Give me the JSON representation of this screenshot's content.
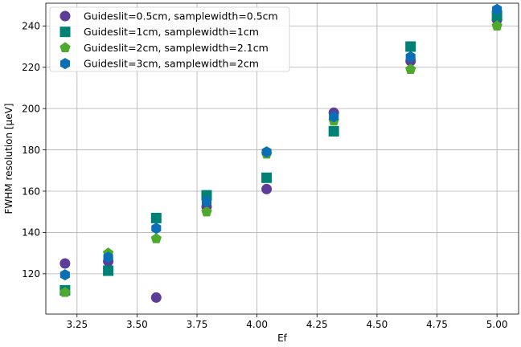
{
  "chart_data": {
    "type": "scatter",
    "xlabel": "Ef",
    "ylabel": "FWHM resolution [μeV]",
    "xlim": [
      3.12,
      5.09
    ],
    "ylim": [
      100.5,
      251
    ],
    "xticks": [
      3.25,
      3.5,
      3.75,
      4.0,
      4.25,
      4.5,
      4.75,
      5.0
    ],
    "xtick_labels": [
      "3.25",
      "3.50",
      "3.75",
      "4.00",
      "4.25",
      "4.50",
      "4.75",
      "5.00"
    ],
    "yticks": [
      120,
      140,
      160,
      180,
      200,
      220,
      240
    ],
    "ytick_labels": [
      "120",
      "140",
      "160",
      "180",
      "200",
      "220",
      "240"
    ],
    "grid": true,
    "legend_position": "top-left",
    "series": [
      {
        "name": "Guideslit=0.5cm, samplewidth=0.5cm",
        "color": "#5e3c99",
        "marker": "circle",
        "points": [
          [
            3.2,
            125
          ],
          [
            3.38,
            126
          ],
          [
            3.58,
            108.5
          ],
          [
            3.79,
            152.5
          ],
          [
            4.04,
            161
          ],
          [
            4.32,
            198
          ],
          [
            4.64,
            223
          ],
          [
            5.0,
            243
          ]
        ]
      },
      {
        "name": "Guideslit=1cm, samplewidth=1cm",
        "color": "#008176",
        "marker": "square",
        "points": [
          [
            3.2,
            112
          ],
          [
            3.38,
            121.5
          ],
          [
            3.58,
            147
          ],
          [
            3.79,
            158
          ],
          [
            4.04,
            166.5
          ],
          [
            4.32,
            189
          ],
          [
            4.64,
            230
          ],
          [
            5.0,
            245
          ]
        ]
      },
      {
        "name": "Guideslit=2cm, samplewidth=2.1cm",
        "color": "#4eaa2c",
        "marker": "pentagon",
        "points": [
          [
            3.2,
            111
          ],
          [
            3.38,
            130
          ],
          [
            3.58,
            137
          ],
          [
            3.79,
            150
          ],
          [
            4.04,
            178
          ],
          [
            4.32,
            194
          ],
          [
            4.64,
            219
          ],
          [
            5.0,
            240
          ]
        ]
      },
      {
        "name": "Guideslit=3cm, samplewidth=2cm",
        "color": "#0a6fb4",
        "marker": "hexagon",
        "points": [
          [
            3.2,
            119.5
          ],
          [
            3.38,
            128
          ],
          [
            3.58,
            142
          ],
          [
            3.79,
            155
          ],
          [
            4.04,
            179
          ],
          [
            4.32,
            196
          ],
          [
            4.64,
            225
          ],
          [
            5.0,
            248
          ]
        ]
      }
    ]
  }
}
